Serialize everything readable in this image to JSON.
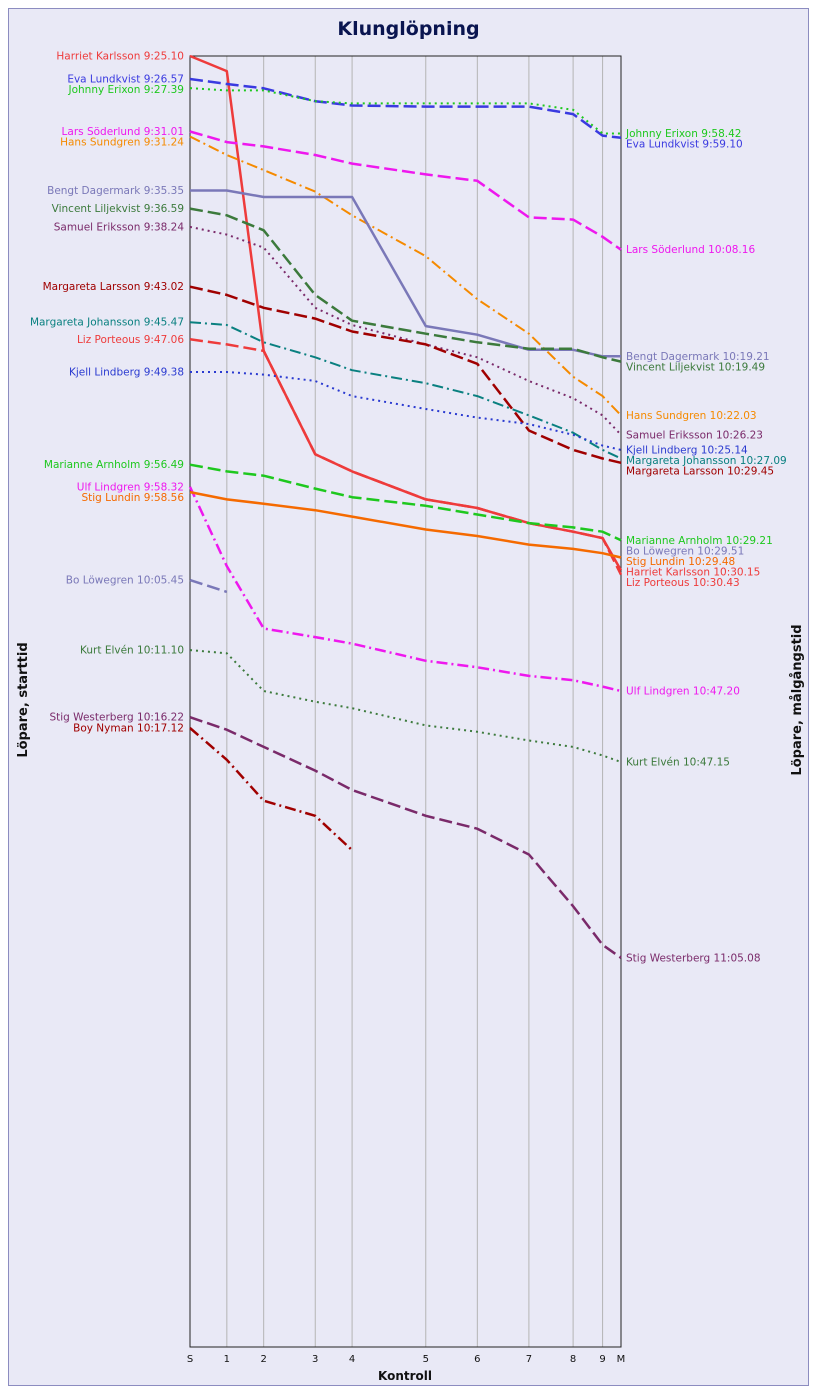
{
  "chart_data": {
    "type": "line",
    "title": "Klunglöpning",
    "xlabel": "Kontroll",
    "ylabel_left": "Löpare, starttid",
    "ylabel_right": "Löpare, målgångstid",
    "x_ticks": [
      "S",
      "1",
      "2",
      "3",
      "4",
      "5",
      "6",
      "7",
      "8",
      "9",
      "M"
    ],
    "x_positions": [
      0,
      1,
      2,
      3.4,
      4.4,
      6.4,
      7.8,
      9.2,
      10.4,
      11.2,
      11.7
    ],
    "y_time_axis": {
      "top": "9:25:10",
      "bottom": "11:05:08",
      "direction": "down"
    },
    "grid": true,
    "series": [
      {
        "name": "Harriet Karlsson",
        "start_label": "Harriet Karlsson 9:25.10",
        "end_label": "Harriet Karlsson 10:30.15",
        "color": "#ee3b3b",
        "dash": "solid",
        "width": 2.5,
        "times": [
          "9:25:10",
          "9:26:20",
          "9:48:00",
          "9:56:00",
          "9:57:20",
          "9:59:30",
          "10:00:10",
          "10:01:20",
          "10:02:00",
          "10:02:30",
          "10:05:00"
        ]
      },
      {
        "name": "Eva Lundkvist",
        "start_label": "Eva Lundkvist 9:26.57",
        "end_label": "Eva Lundkvist 9:59.10",
        "color": "#3a3ae0",
        "dash": "long",
        "width": 2.5,
        "times": [
          "9:26:57",
          "9:27:20",
          "9:27:40",
          "9:28:40",
          "9:29:00",
          "9:29:05",
          "9:29:05",
          "9:29:05",
          "9:29:40",
          "9:31:20",
          "9:31:30"
        ]
      },
      {
        "name": "Johnny Erixon",
        "start_label": "Johnny Erixon 9:27.39",
        "end_label": "Johnny Erixon 9:58.42",
        "color": "#1ec81e",
        "dash": "dot",
        "width": 2,
        "times": [
          "9:27:39",
          "9:27:50",
          "9:27:50",
          "9:28:40",
          "9:28:50",
          "9:28:50",
          "9:28:50",
          "9:28:50",
          "9:29:20",
          "9:31:10",
          "9:31:10"
        ]
      },
      {
        "name": "Lars Söderlund",
        "start_label": "Lars Söderlund 9:31.01",
        "end_label": "Lars Söderlund 10:08.16",
        "color": "#ee18ee",
        "dash": "long",
        "width": 2.5,
        "times": [
          "9:31:01",
          "9:31:50",
          "9:32:10",
          "9:32:50",
          "9:33:30",
          "9:34:20",
          "9:34:50",
          "9:37:40",
          "9:37:50",
          "9:39:10",
          "9:40:10"
        ]
      },
      {
        "name": "Hans Sundgren",
        "start_label": "Hans Sundgren 9:31.24",
        "end_label": "Hans Sundgren 10:22.03",
        "color": "#f58a00",
        "dash": "dashdot",
        "width": 2,
        "times": [
          "9:31:24",
          "9:32:50",
          "9:34:00",
          "9:35:40",
          "9:37:30",
          "9:40:40",
          "9:44:00",
          "9:46:40",
          "9:50:00",
          "9:51:30",
          "9:53:00"
        ]
      },
      {
        "name": "Bengt Dagermark",
        "start_label": "Bengt Dagermark 9:35.35",
        "end_label": "Bengt Dagermark 10:19.21",
        "color": "#7a78b8",
        "dash": "solid",
        "width": 2.5,
        "times": [
          "9:35:35",
          "9:35:35",
          "9:36:05",
          "9:36:05",
          "9:36:05",
          "9:46:05",
          "9:46:45",
          "9:47:55",
          "9:47:55",
          "9:48:25",
          "9:48:25"
        ]
      },
      {
        "name": "Vincent Liljekvist",
        "start_label": "Vincent Liljekvist 9:36.59",
        "end_label": "Vincent Liljekvist 10:19.49",
        "color": "#3c7a3c",
        "dash": "long",
        "width": 2.5,
        "times": [
          "9:36:59",
          "9:37:30",
          "9:38:40",
          "9:43:40",
          "9:45:40",
          "9:46:40",
          "9:47:20",
          "9:47:50",
          "9:47:50",
          "9:48:30",
          "9:48:50"
        ]
      },
      {
        "name": "Samuel Eriksson",
        "start_label": "Samuel Eriksson 9:38.24",
        "end_label": "Samuel Eriksson 10:26.23",
        "color": "#7a2a6a",
        "dash": "dot",
        "width": 2,
        "times": [
          "9:38:24",
          "9:39:00",
          "9:40:00",
          "9:44:40",
          "9:46:00",
          "9:47:30",
          "9:48:30",
          "9:50:20",
          "9:51:40",
          "9:53:00",
          "9:54:30"
        ]
      },
      {
        "name": "Margareta Larsson",
        "start_label": "Margareta Larsson 9:43.02",
        "end_label": "Margareta Larsson 10:29.45",
        "color": "#a00000",
        "dash": "long",
        "width": 2.5,
        "times": [
          "9:43:02",
          "9:43:40",
          "9:44:40",
          "9:45:30",
          "9:46:30",
          "9:47:30",
          "9:49:00",
          "9:54:10",
          "9:55:40",
          "9:56:20",
          "9:56:40"
        ]
      },
      {
        "name": "Margareta Johansson",
        "start_label": "Margareta Johansson 9:45.47",
        "end_label": "Margareta Johansson 10:27.09",
        "color": "#0a8080",
        "dash": "dashdot",
        "width": 2,
        "times": [
          "9:45:47",
          "9:46:00",
          "9:47:20",
          "9:48:30",
          "9:49:30",
          "9:50:30",
          "9:51:30",
          "9:53:00",
          "9:54:20",
          "9:55:40",
          "9:56:20"
        ]
      },
      {
        "name": "Liz Porteous",
        "start_label": "Liz Porteous 9:47.06",
        "end_label": "Liz Porteous 10:30.43",
        "color": "#ee3b3b",
        "dash": "long",
        "width": 2.5,
        "times": [
          "9:47:06",
          "9:47:30",
          "9:48:00",
          "9:56:00",
          "9:57:20",
          "9:59:30",
          "10:00:10",
          "10:01:20",
          "10:02:00",
          "10:02:30",
          "10:05:20"
        ]
      },
      {
        "name": "Kjell Lindberg",
        "start_label": "Kjell Lindberg 9:49.38",
        "end_label": "Kjell Lindberg 10:25.14",
        "color": "#2a3ad0",
        "dash": "dot",
        "width": 2,
        "times": [
          "9:49:38",
          "9:49:38",
          "9:49:50",
          "9:50:20",
          "9:51:30",
          "9:52:30",
          "9:53:10",
          "9:53:40",
          "9:54:30",
          "9:55:20",
          "9:55:40"
        ]
      },
      {
        "name": "Marianne Arnholm",
        "start_label": "Marianne Arnholm 9:56.49",
        "end_label": "Marianne Arnholm 10:29.21",
        "color": "#1ec81e",
        "dash": "long",
        "width": 2.5,
        "times": [
          "9:56:49",
          "9:57:20",
          "9:57:40",
          "9:58:40",
          "9:59:20",
          "10:00:00",
          "10:00:40",
          "10:01:20",
          "10:01:40",
          "10:02:00",
          "10:02:40"
        ]
      },
      {
        "name": "Ulf Lindgren",
        "start_label": "Ulf Lindgren 9:58.32",
        "end_label": "Ulf Lindgren 10:47.20",
        "color": "#ee18ee",
        "dash": "dashdot",
        "width": 2.5,
        "times": [
          "9:58:32",
          "10:04:40",
          "10:09:30",
          "10:10:10",
          "10:10:40",
          "10:12:00",
          "10:12:30",
          "10:13:10",
          "10:13:30",
          "10:14:00",
          "10:14:20"
        ]
      },
      {
        "name": "Stig Lundin",
        "start_label": "Stig Lundin 9:58.56",
        "end_label": "Stig Lundin 10:29.48",
        "color": "#f56a00",
        "dash": "solid",
        "width": 2.5,
        "times": [
          "9:58:56",
          "9:59:30",
          "9:59:50",
          "10:00:20",
          "10:00:50",
          "10:01:50",
          "10:02:20",
          "10:03:00",
          "10:03:20",
          "10:03:40",
          "10:04:00"
        ]
      },
      {
        "name": "Bo Löwegren",
        "start_label": "Bo Löwegren 10:05.45",
        "end_label": "Bo Löwegren 10:29.51",
        "color": "#7a78b8",
        "dash": "long",
        "width": 2.5,
        "times": [
          "10:05:45",
          "10:06:40"
        ]
      },
      {
        "name": "Kurt Elvén",
        "start_label": "Kurt Elvén 10:11.10",
        "end_label": "Kurt Elvén 10:47.15",
        "color": "#3c7a3c",
        "dash": "dot",
        "width": 2,
        "times": [
          "10:11:10",
          "10:11:25",
          "10:14:20",
          "10:15:10",
          "10:15:40",
          "10:17:00",
          "10:17:30",
          "10:18:10",
          "10:18:40",
          "10:19:20",
          "10:19:50"
        ]
      },
      {
        "name": "Stig Westerberg",
        "start_label": "Stig Westerberg 10:16.22",
        "end_label": "Stig Westerberg 11:05.08",
        "color": "#7a2a6a",
        "dash": "long",
        "width": 2.5,
        "times": [
          "10:16:22",
          "10:17:20",
          "10:18:40",
          "10:20:30",
          "10:22:00",
          "10:24:00",
          "10:25:00",
          "10:27:00",
          "10:31:00",
          "10:34:00",
          "10:35:00"
        ]
      },
      {
        "name": "Boy Nyman",
        "start_label": "Boy Nyman 10:17.12",
        "end_label": "",
        "color": "#a00000",
        "dash": "dashdot",
        "width": 2.5,
        "times": [
          "10:17:12",
          "10:19:40",
          "10:22:50",
          "10:24:00",
          "10:26:40"
        ]
      }
    ]
  }
}
